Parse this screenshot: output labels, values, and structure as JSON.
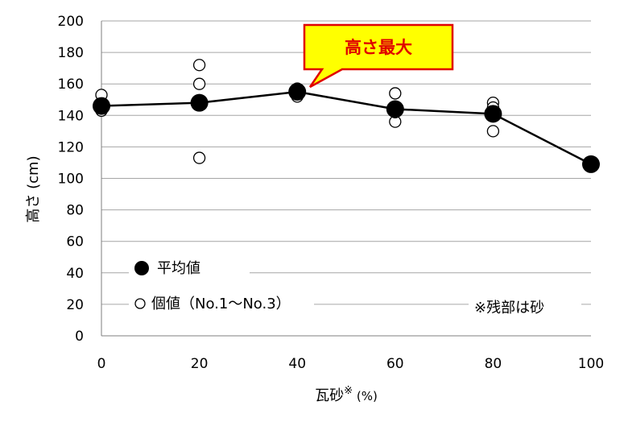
{
  "chart_data": {
    "type": "scatter",
    "ylabel": "高さ (cm)",
    "xlabel_main": "瓦砂",
    "xlabel_sup": "※",
    "xlabel_unit": " (%)",
    "xlim": [
      0,
      100
    ],
    "ylim": [
      0,
      200
    ],
    "xticks": [
      0,
      20,
      40,
      60,
      80,
      100
    ],
    "yticks": [
      0,
      20,
      40,
      60,
      80,
      100,
      120,
      140,
      160,
      180,
      200
    ],
    "grid": "horizontal",
    "series": [
      {
        "name": "平均値",
        "marker": "filled-circle",
        "connected": true,
        "x": [
          0,
          20,
          40,
          60,
          80,
          100
        ],
        "y": [
          146,
          148,
          155,
          144,
          141,
          109
        ]
      },
      {
        "name": "個値（No.1～No.3）",
        "marker": "open-circle",
        "connected": false,
        "points": [
          [
            0,
            153
          ],
          [
            0,
            143
          ],
          [
            0,
            145
          ],
          [
            20,
            172
          ],
          [
            20,
            160
          ],
          [
            20,
            113
          ],
          [
            40,
            157
          ],
          [
            40,
            152
          ],
          [
            40,
            155
          ],
          [
            60,
            154
          ],
          [
            60,
            136
          ],
          [
            60,
            142
          ],
          [
            80,
            148
          ],
          [
            80,
            145
          ],
          [
            80,
            130
          ]
        ]
      }
    ],
    "legend_position": "bottom-left",
    "annotation": {
      "text": "高さ最大",
      "x": 40,
      "y": 155
    },
    "note": "※残部は砂",
    "colors": {
      "line": "#000000",
      "grid": "#a6a6a6",
      "callout_fill": "#ffff00",
      "callout_border": "#e00000",
      "callout_text": "#e00000"
    }
  }
}
